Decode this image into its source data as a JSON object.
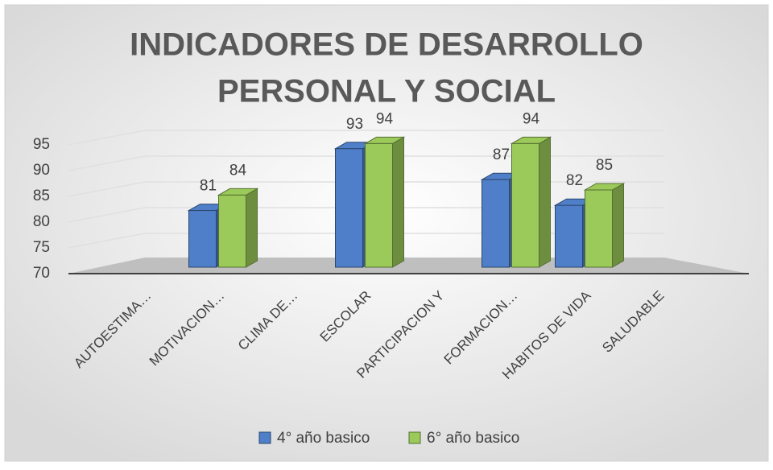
{
  "chart_data": {
    "type": "bar3d",
    "title": [
      "INDICADORES DE DESARROLLO",
      "PERSONAL Y SOCIAL"
    ],
    "categories": [
      "AUTOESTIMA…",
      "MOTIVACION…",
      "CLIMA DE…",
      "ESCOLAR",
      "PARTICIPACION Y",
      "FORMACION…",
      "HABITOS DE VIDA",
      "SALUDABLE"
    ],
    "series": [
      {
        "name": "4° año basico",
        "color": "#4f7fc8",
        "values": [
          null,
          81,
          null,
          93,
          null,
          87,
          82,
          null
        ]
      },
      {
        "name": "6° año basico",
        "color": "#9bc95a",
        "values": [
          null,
          84,
          null,
          94,
          null,
          94,
          85,
          null
        ]
      }
    ],
    "ylim": [
      70,
      95
    ],
    "yticks": [
      70,
      75,
      80,
      85,
      90,
      95
    ],
    "grid": true,
    "legend": "bottom"
  }
}
